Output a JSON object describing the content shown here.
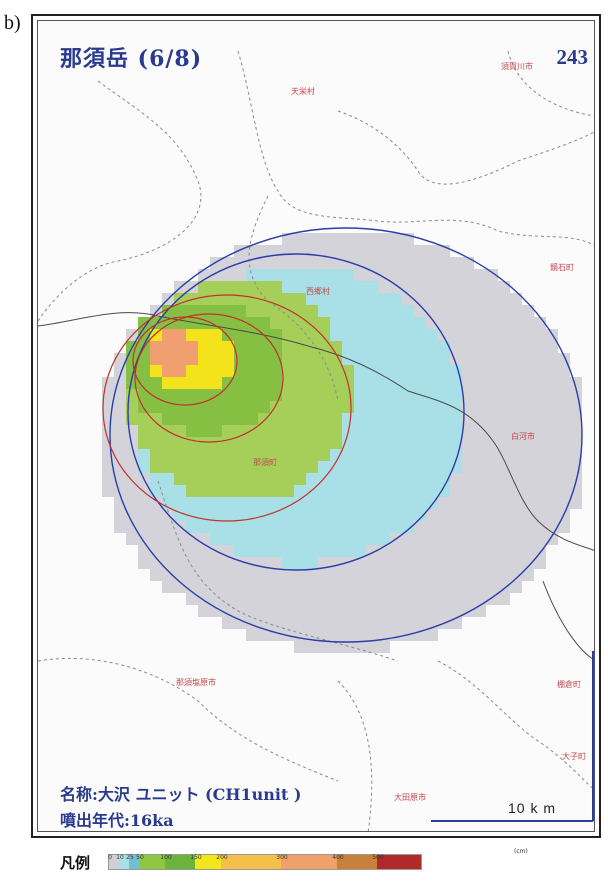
{
  "panel_label": "b)",
  "map": {
    "title": "那須岳 (6/8)",
    "map_number": "243",
    "unit_name": "名称:大沢 ユニット (CH1unit )",
    "eruption_age": "噴出年代:16ka",
    "scale_bar_label": "10 k m",
    "place_names": [
      {
        "id": "tenei",
        "label": "天栄村"
      },
      {
        "id": "sukagawa",
        "label": "須賀川市"
      },
      {
        "id": "kagamiishi",
        "label": "鏡石町"
      },
      {
        "id": "nishigo",
        "label": "西郷村"
      },
      {
        "id": "shirakawa",
        "label": "白河市"
      },
      {
        "id": "nasu",
        "label": "那須町"
      },
      {
        "id": "nasushiobara",
        "label": "那須塩原市"
      },
      {
        "id": "tanagura",
        "label": "棚倉町"
      },
      {
        "id": "otawara",
        "label": "大田原市"
      },
      {
        "id": "daigo",
        "label": "大子町"
      }
    ]
  },
  "legend": {
    "title": "凡例",
    "unit": "(cm)",
    "ticks": [
      "0",
      "10",
      "25",
      "50",
      "100",
      "150",
      "200",
      "300",
      "400",
      "500"
    ],
    "colors": [
      "#cfcfd6",
      "#a9dfe6",
      "#6fc0d0",
      "#8fc642",
      "#6bb33a",
      "#f2e71a",
      "#f5c04a",
      "#f1a06a",
      "#c9803a",
      "#b02a2a"
    ],
    "segment_widths": [
      10,
      10,
      10,
      26,
      30,
      26,
      60,
      56,
      40,
      44
    ]
  },
  "colors": {
    "frame": "#222222",
    "title_blue": "#2a3b8f",
    "contour_blue": "#2b3ea8",
    "contour_red": "#c0322e",
    "class_gray": "#d3d3d9",
    "class_light_blue": "#a9dfe6",
    "class_light_green": "#a6cf5a",
    "class_green": "#86c042",
    "class_yellow": "#f4e21a",
    "class_orange": "#f0a070",
    "place_name_red": "#c4474f"
  }
}
